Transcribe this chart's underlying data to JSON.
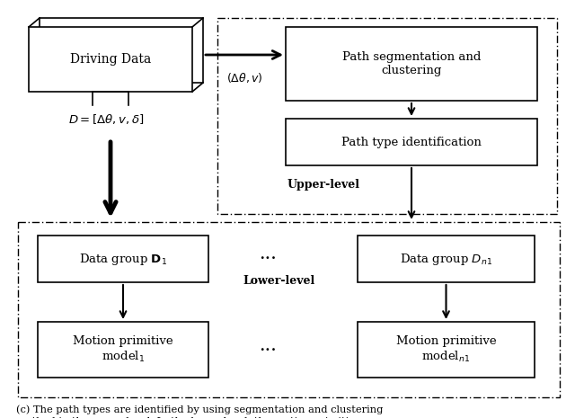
{
  "fig_width": 6.4,
  "fig_height": 4.65,
  "dpi": 100,
  "bg_color": "#ffffff",
  "caption": "(c) The path types are identified by using segmentation and clustering\nmethod in the upper-level. In the lower-level, the motion primitives are\ntrained based on the regrouped data."
}
